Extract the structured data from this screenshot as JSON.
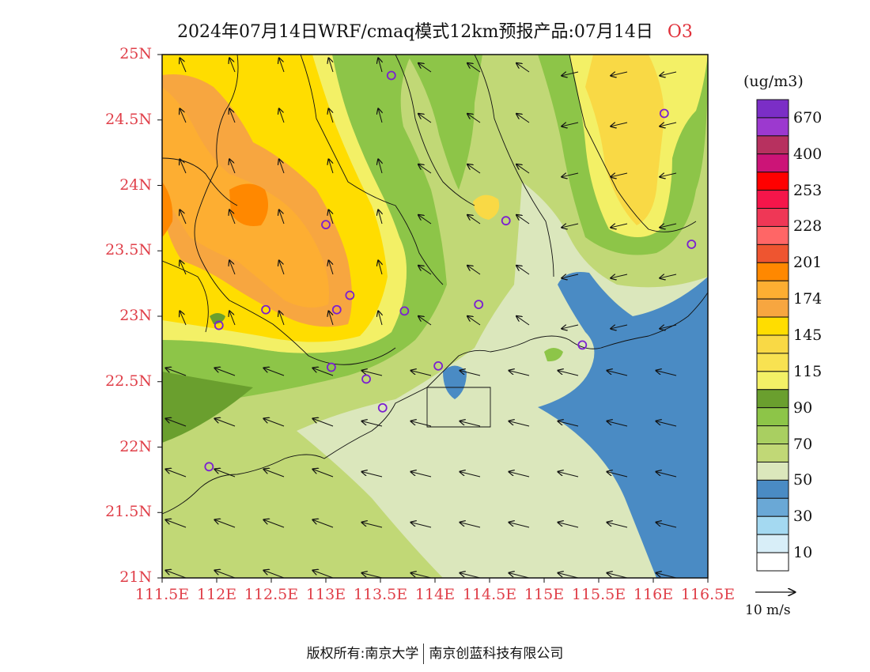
{
  "title": {
    "text": "2024年07月14日WRF/cmaq模式12km预报产品:07月14日",
    "species": "O3"
  },
  "map": {
    "lon_range": [
      111.5,
      116.5
    ],
    "lat_range": [
      21,
      25
    ],
    "lat_labels": [
      "25N",
      "24.5N",
      "24N",
      "23.5N",
      "23N",
      "22.5N",
      "22N",
      "21.5N",
      "21N"
    ],
    "lon_labels": [
      "111.5E",
      "112E",
      "112.5E",
      "113E",
      "113.5E",
      "114E",
      "114.5E",
      "115E",
      "115.5E",
      "116E",
      "116.5E"
    ],
    "wind_dominant": "easterly to south-easterly over sea and coast; south-easterly/southerly inland"
  },
  "colorbar": {
    "unit": "(ug/m3)",
    "labels": [
      "670",
      "400",
      "253",
      "228",
      "201",
      "174",
      "145",
      "115",
      "90",
      "70",
      "50",
      "30",
      "10"
    ],
    "colors": [
      "#7b2ec6",
      "#9c39cf",
      "#b7315f",
      "#cc1477",
      "#ff0000",
      "#f5154a",
      "#ef3756",
      "#ff6666",
      "#ee5530",
      "#ff8800",
      "#fdae32",
      "#f7a640",
      "#ffdd00",
      "#f9d945",
      "#f8e251",
      "#f3f066",
      "#6a9f2e",
      "#8dc548",
      "#a9cf61",
      "#c1d876",
      "#dbe7bc",
      "#4a8bc4",
      "#6aa8d6",
      "#a4d9f1",
      "#d8eef8",
      "#ffffff"
    ]
  },
  "ref_vector": {
    "label": "10 m/s"
  },
  "stations": [
    {
      "lon": 113.6,
      "lat": 24.84
    },
    {
      "lon": 116.1,
      "lat": 24.55
    },
    {
      "lon": 113.0,
      "lat": 23.7
    },
    {
      "lon": 114.65,
      "lat": 23.73
    },
    {
      "lon": 116.35,
      "lat": 23.55
    },
    {
      "lon": 113.22,
      "lat": 23.16
    },
    {
      "lon": 112.45,
      "lat": 23.05
    },
    {
      "lon": 113.1,
      "lat": 23.05
    },
    {
      "lon": 113.72,
      "lat": 23.04
    },
    {
      "lon": 114.4,
      "lat": 23.09
    },
    {
      "lon": 112.02,
      "lat": 22.93
    },
    {
      "lon": 115.35,
      "lat": 22.78
    },
    {
      "lon": 113.05,
      "lat": 22.61
    },
    {
      "lon": 113.37,
      "lat": 22.52
    },
    {
      "lon": 114.03,
      "lat": 22.62
    },
    {
      "lon": 113.52,
      "lat": 22.3
    },
    {
      "lon": 111.93,
      "lat": 21.85
    }
  ],
  "footer": {
    "left": "版权所有:南京大学",
    "right": "南京创蓝科技有限公司"
  }
}
